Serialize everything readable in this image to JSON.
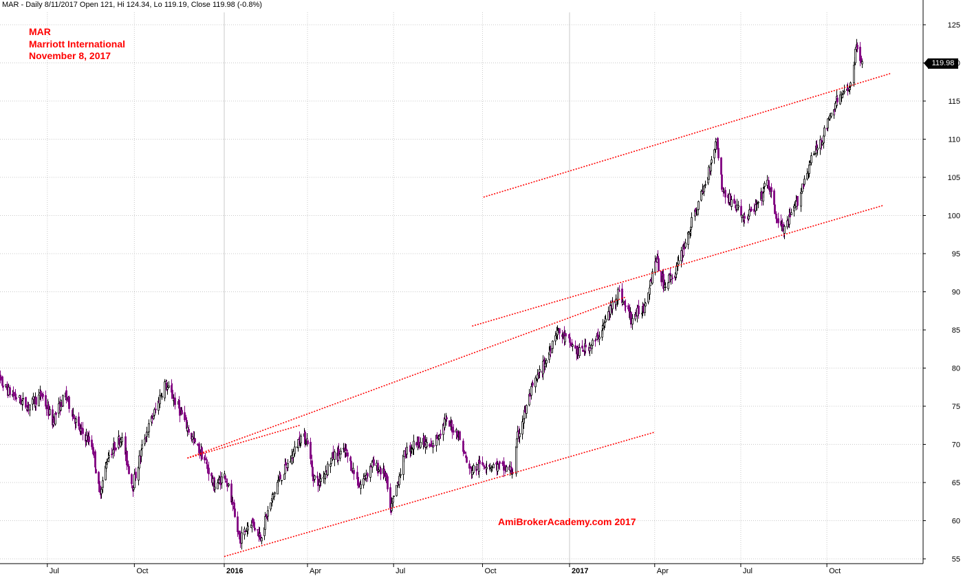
{
  "header": {
    "info": "MAR - Daily 8/11/2017 Open 121, Hi 124.34, Lo 119.19, Close 119.98 (-0.8%)"
  },
  "title": {
    "symbol": "MAR",
    "company": "Marriott International",
    "date": "November 8, 2017"
  },
  "watermark": "AmiBrokerAcademy.com  2017",
  "last_price_label": "119.98",
  "colors": {
    "up_candle": "#000000",
    "down_candle": "#800080",
    "trendline": "#ff0000",
    "grid": "#c8c8c8",
    "title_text": "#ff0000"
  },
  "chart_data": {
    "type": "candlestick",
    "symbol": "MAR",
    "period": "Daily",
    "ylim": [
      54,
      127
    ],
    "y_ticks": [
      55,
      60,
      65,
      70,
      75,
      80,
      85,
      90,
      95,
      100,
      105,
      110,
      115,
      120,
      125
    ],
    "x_ticks": [
      {
        "label": "Jul",
        "date": "2015-07-01",
        "bold": false
      },
      {
        "label": "Oct",
        "date": "2015-10-01",
        "bold": false
      },
      {
        "label": "2016",
        "date": "2016-01-04",
        "bold": true
      },
      {
        "label": "Apr",
        "date": "2016-04-01",
        "bold": false
      },
      {
        "label": "Jul",
        "date": "2016-07-01",
        "bold": false
      },
      {
        "label": "Oct",
        "date": "2016-10-03",
        "bold": false
      },
      {
        "label": "2017",
        "date": "2017-01-03",
        "bold": true
      },
      {
        "label": "Apr",
        "date": "2017-04-03",
        "bold": false
      },
      {
        "label": "Jul",
        "date": "2017-07-03",
        "bold": false
      },
      {
        "label": "Oct",
        "date": "2017-10-02",
        "bold": false
      }
    ],
    "grid": true,
    "last_close": 119.98,
    "price_path": [
      [
        "2015-05-04",
        79.5
      ],
      [
        "2015-05-20",
        77.0
      ],
      [
        "2015-06-10",
        75.0
      ],
      [
        "2015-06-25",
        76.5
      ],
      [
        "2015-07-06",
        73.0
      ],
      [
        "2015-07-20",
        76.5
      ],
      [
        "2015-08-03",
        72.0
      ],
      [
        "2015-08-17",
        70.0
      ],
      [
        "2015-08-25",
        63.5
      ],
      [
        "2015-09-03",
        68.5
      ],
      [
        "2015-09-17",
        71.0
      ],
      [
        "2015-09-29",
        64.5
      ],
      [
        "2015-10-12",
        71.0
      ],
      [
        "2015-10-23",
        74.5
      ],
      [
        "2015-11-02",
        78.0
      ],
      [
        "2015-11-16",
        75.0
      ],
      [
        "2015-11-30",
        71.0
      ],
      [
        "2015-12-14",
        68.0
      ],
      [
        "2015-12-24",
        64.5
      ],
      [
        "2016-01-05",
        66.0
      ],
      [
        "2016-01-12",
        62.0
      ],
      [
        "2016-01-20",
        57.5
      ],
      [
        "2016-02-01",
        60.0
      ],
      [
        "2016-02-11",
        58.0
      ],
      [
        "2016-02-29",
        65.0
      ],
      [
        "2016-03-14",
        68.0
      ],
      [
        "2016-03-24",
        71.0
      ],
      [
        "2016-04-01",
        70.5
      ],
      [
        "2016-04-06",
        66.0
      ],
      [
        "2016-04-13",
        65.0
      ],
      [
        "2016-04-28",
        68.5
      ],
      [
        "2016-05-11",
        69.0
      ],
      [
        "2016-05-26",
        64.5
      ],
      [
        "2016-06-08",
        67.5
      ],
      [
        "2016-06-22",
        66.0
      ],
      [
        "2016-06-27",
        61.0
      ],
      [
        "2016-07-13",
        69.0
      ],
      [
        "2016-07-27",
        70.5
      ],
      [
        "2016-08-10",
        69.5
      ],
      [
        "2016-08-24",
        73.0
      ],
      [
        "2016-09-07",
        71.5
      ],
      [
        "2016-09-19",
        66.5
      ],
      [
        "2016-10-05",
        67.5
      ],
      [
        "2016-10-21",
        67.0
      ],
      [
        "2016-11-04",
        66.5
      ],
      [
        "2016-11-09",
        71.0
      ],
      [
        "2016-11-23",
        77.0
      ],
      [
        "2016-12-09",
        81.0
      ],
      [
        "2016-12-20",
        85.0
      ],
      [
        "2017-01-05",
        83.0
      ],
      [
        "2017-01-12",
        82.0
      ],
      [
        "2017-01-30",
        83.5
      ],
      [
        "2017-02-09",
        86.0
      ],
      [
        "2017-02-23",
        90.0
      ],
      [
        "2017-03-09",
        86.5
      ],
      [
        "2017-03-22",
        88.0
      ],
      [
        "2017-04-04",
        94.5
      ],
      [
        "2017-04-12",
        91.0
      ],
      [
        "2017-04-25",
        92.5
      ],
      [
        "2017-05-05",
        96.5
      ],
      [
        "2017-05-16",
        100.5
      ],
      [
        "2017-05-26",
        104.0
      ],
      [
        "2017-06-07",
        110.0
      ],
      [
        "2017-06-14",
        103.0
      ],
      [
        "2017-06-26",
        101.5
      ],
      [
        "2017-07-07",
        99.5
      ],
      [
        "2017-07-21",
        101.5
      ],
      [
        "2017-07-31",
        104.5
      ],
      [
        "2017-08-11",
        99.0
      ],
      [
        "2017-08-18",
        98.0
      ],
      [
        "2017-09-01",
        102.0
      ],
      [
        "2017-09-14",
        107.0
      ],
      [
        "2017-09-28",
        110.5
      ],
      [
        "2017-10-12",
        115.0
      ],
      [
        "2017-10-25",
        116.5
      ],
      [
        "2017-11-03",
        122.5
      ],
      [
        "2017-11-08",
        119.98
      ]
    ],
    "trendlines": [
      {
        "from": [
          "2015-11-26",
          68.2
        ],
        "to": [
          "2016-03-24",
          72.5
        ]
      },
      {
        "from": [
          "2015-11-26",
          68.2
        ],
        "to": [
          "2017-03-03",
          89.3
        ]
      },
      {
        "from": [
          "2016-01-04",
          55.3
        ],
        "to": [
          "2017-04-03",
          71.6
        ]
      },
      {
        "from": [
          "2016-09-22",
          85.5
        ],
        "to": [
          "2017-11-30",
          101.3
        ]
      },
      {
        "from": [
          "2016-10-04",
          102.4
        ],
        "to": [
          "2017-12-08",
          118.6
        ]
      }
    ]
  }
}
